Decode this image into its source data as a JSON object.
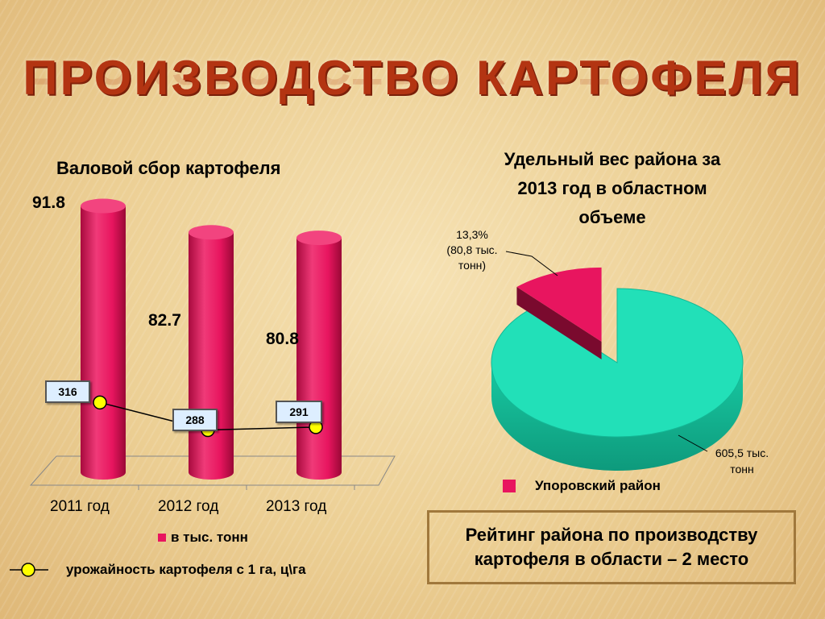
{
  "slide": {
    "title": "ПРОИЗВОДСТВО КАРТОФЕЛЯ",
    "rating_text_line1": "Рейтинг района по производству",
    "rating_text_line2": "картофеля в области – 2 место"
  },
  "colors": {
    "bar": "#e8155f",
    "pie_big": "#22e0b8",
    "pie_small": "#e8155f",
    "title": "#b33412"
  },
  "chart_data": [
    {
      "type": "bar",
      "title": "Валовой сбор картофеля",
      "categories": [
        "2011 год",
        "2012 год",
        "2013 год"
      ],
      "series": [
        {
          "name": "в тыс. тонн",
          "values": [
            91.8,
            82.7,
            80.8
          ],
          "value_labels": [
            "91.8",
            "82.7",
            "80.8"
          ]
        },
        {
          "name": "урожайность картофеля с 1 га, ц\\га",
          "type": "line",
          "values": [
            316,
            288,
            291
          ],
          "value_labels": [
            "316",
            "288",
            "291"
          ]
        }
      ],
      "legend": [
        "в тыс. тонн",
        "урожайность картофеля с 1 га, ц\\га"
      ]
    },
    {
      "type": "pie",
      "title_line1": "Удельный вес района за",
      "title_line2": "2013 год в областном",
      "title_line3": "объеме",
      "slices": [
        {
          "name": "Упоровский  район",
          "value": 80.8,
          "label_line1": "13,3%",
          "label_line2": "(80,8 тыс.",
          "label_line3": "тонн)"
        },
        {
          "name": "",
          "value": 605.5,
          "label_line1": "605,5 тыс.",
          "label_line2": "тонн"
        }
      ],
      "legend": [
        "Упоровский  район"
      ]
    }
  ]
}
